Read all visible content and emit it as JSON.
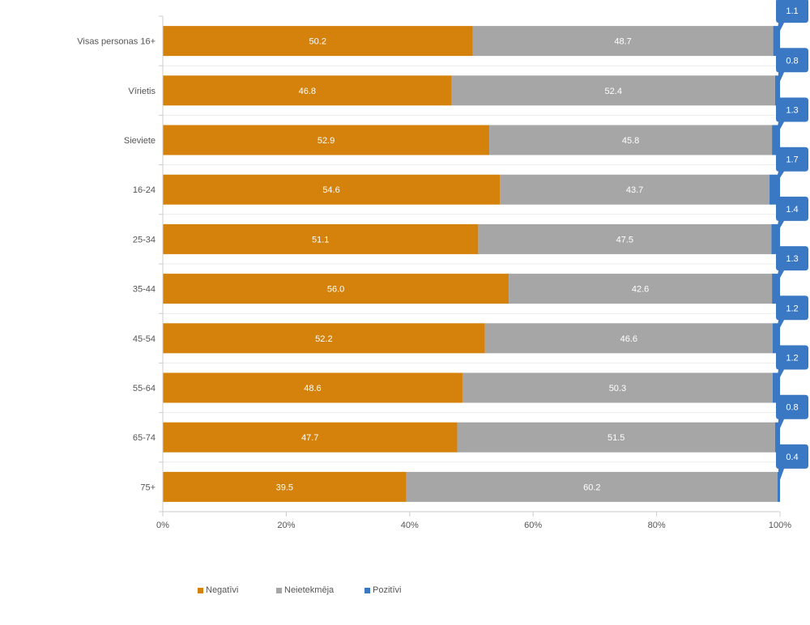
{
  "chart_data": {
    "type": "bar",
    "orientation": "horizontal",
    "stacked": "percent",
    "categories": [
      "Visas personas 16+",
      "Vīrietis",
      "Sieviete",
      "16-24",
      "25-34",
      "35-44",
      "45-54",
      "55-64",
      "65-74",
      "75+"
    ],
    "series": [
      {
        "name": "Negatīvi",
        "color": "#d4820b",
        "values": [
          50.2,
          46.8,
          52.9,
          54.6,
          51.1,
          56.0,
          52.2,
          48.6,
          47.7,
          39.5
        ],
        "labels": [
          "50.2",
          "46.8",
          "52.9",
          "54.6",
          "51.1",
          "56.0",
          "52.2",
          "48.6",
          "47.7",
          "39.5"
        ]
      },
      {
        "name": "Neietekmēja",
        "color": "#a6a6a6",
        "values": [
          48.7,
          52.4,
          45.8,
          43.7,
          47.5,
          42.6,
          46.6,
          50.3,
          51.5,
          60.2
        ],
        "labels": [
          "48.7",
          "52.4",
          "45.8",
          "43.7",
          "47.5",
          "42.6",
          "46.6",
          "50.3",
          "51.5",
          "60.2"
        ]
      },
      {
        "name": "Pozitīvi",
        "color": "#3a78c3",
        "values": [
          1.1,
          0.8,
          1.3,
          1.7,
          1.4,
          1.3,
          1.2,
          1.2,
          0.8,
          0.4
        ],
        "labels": [
          "1.1",
          "0.8",
          "1.3",
          "1.7",
          "1.4",
          "1.3",
          "1.2",
          "1.2",
          "0.8",
          "0.4"
        ]
      }
    ],
    "x_ticks": [
      "0%",
      "20%",
      "40%",
      "60%",
      "80%",
      "100%"
    ],
    "xlim": [
      0,
      100
    ],
    "grid": false,
    "legend_position": "bottom"
  }
}
